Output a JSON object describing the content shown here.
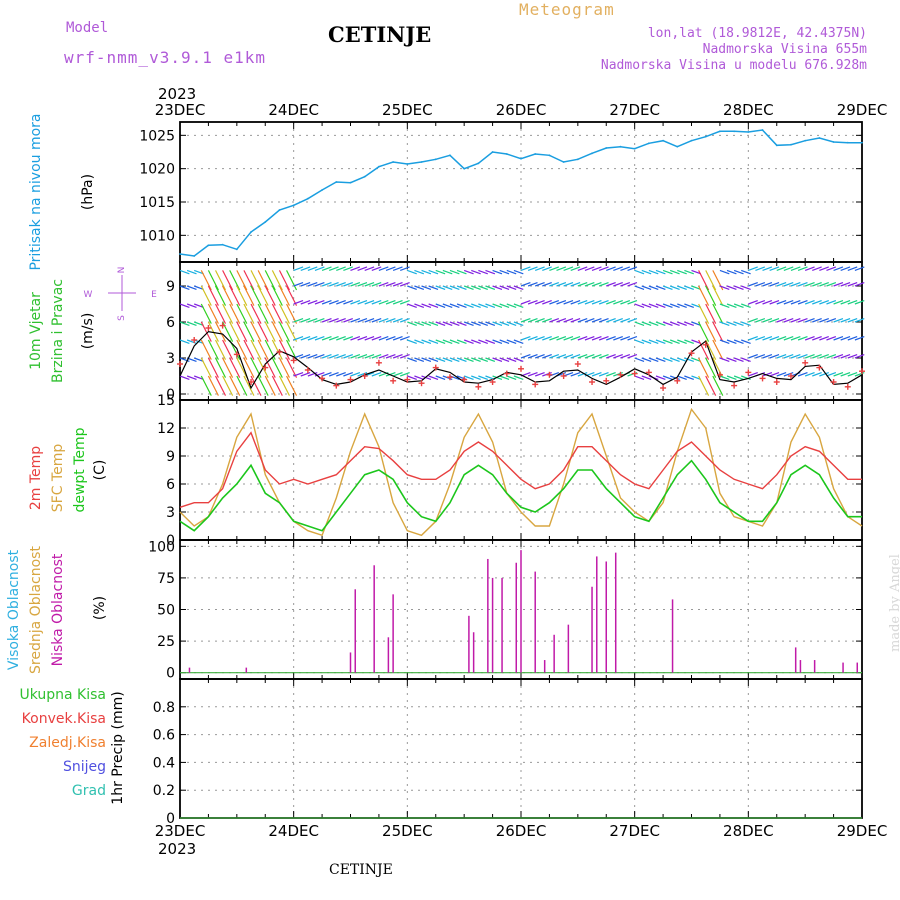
{
  "header": {
    "model_label": "Model",
    "model_name": "wrf-nmm_v3.9.1 e1km",
    "station": "CETINJE",
    "meteogram_label": "Meteogram",
    "lonlat": "lon,lat (18.9812E, 42.4375N)",
    "elevation": "Nadmorska Visina 655m",
    "model_elevation": "Nadmorska Visina u modelu 676.928m"
  },
  "footer": {
    "station": "CETINJE",
    "credit": "made by Angel"
  },
  "colors": {
    "pressure": "#1a9ee0",
    "temp2m": "#e84040",
    "sfc_temp": "#d8a640",
    "dewpoint": "#1cc61c",
    "cloud_low": "#c01aa8",
    "cloud_mid": "#d8a640",
    "cloud_high": "#30b0e0",
    "wind_speed": "#000000",
    "wind_dir": "#e84040"
  },
  "time_axis": {
    "year": "2023",
    "labels": [
      "23DEC",
      "24DEC",
      "25DEC",
      "26DEC",
      "27DEC",
      "28DEC",
      "29DEC"
    ],
    "start_hour": 0,
    "end_hour": 144
  },
  "chart_data": [
    {
      "type": "line",
      "panel": "pressure",
      "ylabel": [
        "Pritisak na nivou mora",
        "(hPa)"
      ],
      "ylim": [
        1006,
        1027
      ],
      "yticks": [
        1010,
        1015,
        1020,
        1025
      ],
      "grid": true,
      "x": [
        0,
        3,
        6,
        9,
        12,
        15,
        18,
        21,
        24,
        27,
        30,
        33,
        36,
        39,
        42,
        45,
        48,
        51,
        54,
        57,
        60,
        63,
        66,
        69,
        72,
        75,
        78,
        81,
        84,
        87,
        90,
        93,
        96,
        99,
        102,
        105,
        108,
        111,
        114,
        117,
        120,
        123,
        126,
        129,
        132,
        135,
        138,
        141,
        144
      ],
      "series": [
        {
          "values": [
            1007.2,
            1006.9,
            1008.5,
            1008.6,
            1007.9,
            1010.5,
            1012,
            1013.8,
            1014.5,
            1015.5,
            1016.8,
            1018.0,
            1017.9,
            1018.8,
            1020.3,
            1021.0,
            1020.7,
            1021.0,
            1021.4,
            1022.0,
            1020.0,
            1020.8,
            1022.5,
            1022.2,
            1021.5,
            1022.2,
            1022.0,
            1021.0,
            1021.4,
            1022.3,
            1023.1,
            1023.3,
            1023.0,
            1023.8,
            1024.2,
            1023.3,
            1024.2,
            1024.8,
            1025.6,
            1025.6,
            1025.5,
            1025.8,
            1023.5,
            1023.6,
            1024.2,
            1024.6,
            1024.0,
            1023.9,
            1023.9
          ]
        }
      ]
    },
    {
      "type": "line",
      "panel": "wind",
      "ylabel": [
        "10m Vjetar",
        "Brzina i Pravac",
        "(m/s)"
      ],
      "compass": [
        "N",
        "E",
        "S",
        "W"
      ],
      "ylim": [
        -0.5,
        11
      ],
      "yticks": [
        0,
        3,
        6,
        9
      ],
      "grid": true,
      "x": [
        0,
        3,
        6,
        9,
        12,
        15,
        18,
        21,
        24,
        27,
        30,
        33,
        36,
        39,
        42,
        45,
        48,
        51,
        54,
        57,
        60,
        63,
        66,
        69,
        72,
        75,
        78,
        81,
        84,
        87,
        90,
        93,
        96,
        99,
        102,
        105,
        108,
        111,
        114,
        117,
        120,
        123,
        126,
        129,
        132,
        135,
        138,
        141,
        144
      ],
      "series": [
        {
          "values": [
            1.5,
            4.0,
            5.2,
            5.0,
            3.8,
            0.5,
            2.5,
            3.6,
            3.1,
            2.2,
            1.2,
            0.8,
            1.0,
            1.6,
            2.0,
            1.5,
            1.0,
            1.1,
            2.1,
            1.8,
            1.0,
            0.9,
            1.2,
            1.8,
            1.6,
            1.0,
            1.1,
            1.9,
            2.0,
            1.3,
            0.8,
            1.4,
            2.1,
            1.6,
            0.8,
            1.4,
            3.5,
            4.4,
            1.2,
            1.0,
            1.3,
            1.7,
            1.3,
            1.2,
            2.3,
            2.4,
            0.8,
            0.9,
            1.6
          ]
        },
        {
          "values": [
            2.5,
            4.5,
            5.5,
            5.7,
            3.3,
            1.0,
            2.2,
            3.5,
            2.8,
            2.0,
            1.3,
            0.7,
            1.2,
            1.5,
            2.6,
            1.1,
            1.2,
            0.9,
            2.2,
            1.4,
            1.2,
            0.6,
            1.0,
            1.7,
            2.1,
            0.8,
            1.6,
            1.5,
            2.5,
            1.0,
            1.1,
            1.6,
            1.7,
            1.8,
            0.5,
            1.1,
            3.4,
            4.1,
            1.6,
            0.7,
            1.8,
            1.3,
            1.0,
            1.5,
            2.6,
            2.2,
            1.0,
            0.6,
            1.9
          ]
        }
      ]
    },
    {
      "type": "line",
      "panel": "temperature",
      "ylabel": [
        "2m Temp",
        "SFC Temp",
        "dewpt Temp",
        "(C)"
      ],
      "ylim": [
        0,
        15
      ],
      "yticks": [
        0,
        3,
        6,
        9,
        12,
        15
      ],
      "grid": true,
      "x": [
        0,
        3,
        6,
        9,
        12,
        15,
        18,
        21,
        24,
        27,
        30,
        33,
        36,
        39,
        42,
        45,
        48,
        51,
        54,
        57,
        60,
        63,
        66,
        69,
        72,
        75,
        78,
        81,
        84,
        87,
        90,
        93,
        96,
        99,
        102,
        105,
        108,
        111,
        114,
        117,
        120,
        123,
        126,
        129,
        132,
        135,
        138,
        141,
        144
      ],
      "series": [
        {
          "name": "2m Temp",
          "values": [
            3.5,
            4.0,
            4.0,
            5.5,
            9.5,
            11.5,
            7.5,
            6.0,
            6.5,
            6.0,
            6.5,
            7.0,
            8.5,
            10.0,
            9.8,
            8.5,
            7.0,
            6.5,
            6.5,
            7.5,
            9.5,
            10.5,
            9.5,
            8.0,
            6.5,
            5.5,
            6.0,
            7.5,
            10.0,
            10.0,
            8.5,
            7.0,
            6.0,
            5.5,
            7.5,
            9.5,
            10.5,
            9.0,
            7.5,
            6.5,
            6.0,
            5.5,
            7.0,
            9.0,
            10.0,
            9.5,
            8.0,
            6.5,
            6.5
          ]
        },
        {
          "name": "SFC Temp",
          "values": [
            3.0,
            1.5,
            2.5,
            6.0,
            11.0,
            13.5,
            7.0,
            4.0,
            2.0,
            1.0,
            0.5,
            4.5,
            9.5,
            13.5,
            10.0,
            4.0,
            1.0,
            0.5,
            2.0,
            6.0,
            11.0,
            13.5,
            10.5,
            5.0,
            3.0,
            1.5,
            1.5,
            6.0,
            11.5,
            13.5,
            9.0,
            4.5,
            3.0,
            2.0,
            4.0,
            9.5,
            14.0,
            12.0,
            5.0,
            2.5,
            2.0,
            1.5,
            4.0,
            10.5,
            13.5,
            11.0,
            5.5,
            2.5,
            1.5
          ]
        },
        {
          "name": "dewpt Temp",
          "values": [
            2.0,
            1.0,
            2.5,
            4.5,
            6.0,
            8.0,
            5.0,
            4.0,
            2.0,
            1.5,
            1.0,
            3.0,
            5.0,
            7.0,
            7.5,
            6.5,
            4.0,
            2.5,
            2.0,
            4.0,
            7.0,
            8.0,
            7.0,
            5.0,
            3.5,
            3.0,
            4.0,
            5.5,
            7.5,
            7.5,
            5.5,
            4.0,
            2.5,
            2.0,
            4.5,
            7.0,
            8.5,
            6.5,
            4.0,
            3.0,
            2.0,
            2.0,
            4.0,
            7.0,
            8.0,
            7.0,
            4.5,
            2.5,
            2.5
          ]
        }
      ]
    },
    {
      "type": "bar",
      "panel": "cloud",
      "ylabel": [
        "Visoka Oblacnost",
        "Srednja Oblacnost",
        "Niska Oblacnost",
        "(%)"
      ],
      "ylim": [
        -5,
        105
      ],
      "yticks": [
        0,
        25,
        50,
        75,
        100
      ],
      "grid": true,
      "x": [
        2,
        14,
        36,
        37,
        41,
        44,
        45,
        61,
        62,
        65,
        66,
        68,
        71,
        72,
        75,
        77,
        79,
        82,
        87,
        88,
        90,
        92,
        104,
        130,
        131,
        134,
        140,
        143
      ],
      "values": [
        4,
        4,
        16,
        66,
        85,
        28,
        62,
        45,
        32,
        90,
        75,
        75,
        87,
        97,
        80,
        10,
        30,
        38,
        68,
        92,
        88,
        95,
        58,
        20,
        10,
        10,
        8,
        8
      ]
    },
    {
      "type": "line",
      "panel": "precip",
      "ylabel": [
        "1hr Precip (mm)"
      ],
      "legend": [
        "Ukupna Kisa",
        "Konvek.Kisa",
        "Zaledj.Kisa",
        "Snijeg",
        "Grad"
      ],
      "ylim": [
        0,
        1
      ],
      "yticks": [
        0,
        0.2,
        0.4,
        0.6,
        0.8
      ],
      "grid": true,
      "x": [
        0,
        144
      ],
      "series": [
        {
          "name": "Ukupna Kisa",
          "values": [
            0,
            0
          ]
        }
      ]
    }
  ]
}
